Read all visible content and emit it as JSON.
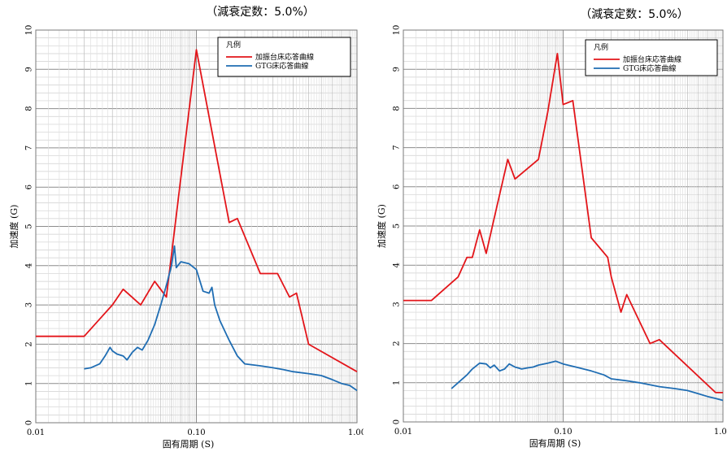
{
  "chart_data": [
    {
      "type": "line",
      "title": "（減衰定数：5.0%）",
      "xlabel": "固有周期 (S)",
      "ylabel": "加速度 (G)",
      "x_scale": "log",
      "xlim": [
        0.01,
        1.0
      ],
      "ylim": [
        0,
        10
      ],
      "x_ticks": [
        {
          "v": 0.01,
          "label": "0.01"
        },
        {
          "v": 0.1,
          "label": "0.10"
        },
        {
          "v": 1.0,
          "label": "1.00"
        }
      ],
      "y_ticks": [
        "0",
        "1",
        "2",
        "3",
        "4",
        "5",
        "6",
        "7",
        "8",
        "9",
        "10"
      ],
      "grid": true,
      "legend": {
        "title": "凡例",
        "position": "top-right"
      },
      "series": [
        {
          "name": "加振台床応答曲線",
          "color": "#e3151a",
          "x": [
            0.01,
            0.02,
            0.03,
            0.035,
            0.045,
            0.055,
            0.065,
            0.1,
            0.16,
            0.18,
            0.25,
            0.32,
            0.38,
            0.42,
            0.5,
            1.0
          ],
          "y": [
            2.2,
            2.2,
            3.0,
            3.4,
            3.0,
            3.6,
            3.2,
            9.5,
            5.1,
            5.2,
            3.8,
            3.8,
            3.2,
            3.3,
            2.0,
            1.3
          ]
        },
        {
          "name": "GTG床応答曲線",
          "color": "#1f6db3",
          "x": [
            0.02,
            0.022,
            0.025,
            0.027,
            0.029,
            0.03,
            0.032,
            0.035,
            0.037,
            0.04,
            0.043,
            0.046,
            0.05,
            0.055,
            0.06,
            0.065,
            0.07,
            0.073,
            0.075,
            0.08,
            0.09,
            0.1,
            0.11,
            0.12,
            0.125,
            0.13,
            0.14,
            0.16,
            0.18,
            0.2,
            0.25,
            0.3,
            0.35,
            0.4,
            0.5,
            0.6,
            0.7,
            0.8,
            0.9,
            1.0
          ],
          "y": [
            1.37,
            1.4,
            1.5,
            1.7,
            1.92,
            1.83,
            1.75,
            1.7,
            1.6,
            1.8,
            1.92,
            1.85,
            2.1,
            2.5,
            3.0,
            3.5,
            4.0,
            4.5,
            3.95,
            4.1,
            4.05,
            3.9,
            3.35,
            3.3,
            3.45,
            3.0,
            2.6,
            2.1,
            1.7,
            1.5,
            1.45,
            1.4,
            1.35,
            1.3,
            1.25,
            1.2,
            1.1,
            1.0,
            0.95,
            0.82
          ]
        }
      ]
    },
    {
      "type": "line",
      "title": "（減衰定数：5.0%）",
      "xlabel": "固有周期 (S)",
      "ylabel": "加速度 (G)",
      "x_scale": "log",
      "xlim": [
        0.01,
        1.0
      ],
      "ylim": [
        0,
        10
      ],
      "x_ticks": [
        {
          "v": 0.01,
          "label": "0.01"
        },
        {
          "v": 0.1,
          "label": "0.10"
        },
        {
          "v": 1.0,
          "label": "1.00"
        }
      ],
      "y_ticks": [
        "0",
        "1",
        "2",
        "3",
        "4",
        "5",
        "6",
        "7",
        "8",
        "9",
        "10"
      ],
      "grid": true,
      "legend": {
        "title": "凡例",
        "position": "top-right"
      },
      "series": [
        {
          "name": "加振台床応答曲線",
          "color": "#e3151a",
          "x": [
            0.01,
            0.015,
            0.022,
            0.025,
            0.027,
            0.03,
            0.033,
            0.037,
            0.045,
            0.05,
            0.07,
            0.08,
            0.092,
            0.1,
            0.115,
            0.15,
            0.19,
            0.2,
            0.23,
            0.25,
            0.35,
            0.4,
            0.9,
            1.0
          ],
          "y": [
            3.1,
            3.1,
            3.7,
            4.2,
            4.2,
            4.9,
            4.3,
            5.2,
            6.7,
            6.2,
            6.7,
            7.9,
            9.4,
            8.1,
            8.2,
            4.7,
            4.2,
            3.7,
            2.8,
            3.25,
            2.0,
            2.1,
            0.75,
            0.75
          ]
        },
        {
          "name": "GTG床応答曲線",
          "color": "#1f6db3",
          "x": [
            0.02,
            0.022,
            0.025,
            0.027,
            0.03,
            0.033,
            0.035,
            0.037,
            0.04,
            0.043,
            0.046,
            0.05,
            0.055,
            0.06,
            0.065,
            0.07,
            0.08,
            0.09,
            0.1,
            0.12,
            0.15,
            0.18,
            0.2,
            0.25,
            0.3,
            0.4,
            0.5,
            0.6,
            0.7,
            0.8,
            0.9,
            1.0
          ],
          "y": [
            0.85,
            1.0,
            1.2,
            1.35,
            1.5,
            1.48,
            1.38,
            1.45,
            1.3,
            1.35,
            1.48,
            1.4,
            1.35,
            1.38,
            1.4,
            1.45,
            1.5,
            1.55,
            1.48,
            1.4,
            1.3,
            1.2,
            1.1,
            1.05,
            1.0,
            0.9,
            0.85,
            0.8,
            0.72,
            0.65,
            0.6,
            0.55
          ]
        }
      ]
    }
  ]
}
